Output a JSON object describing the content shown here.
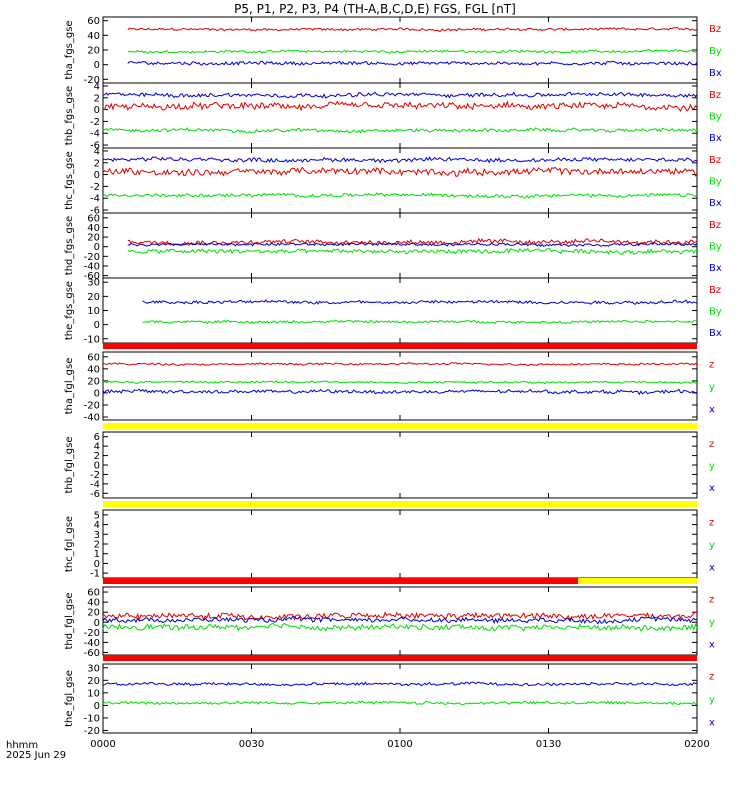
{
  "title": "P5, P1, P2, P3, P4 (TH-A,B,C,D,E) FGS, FGL [nT]",
  "footer": {
    "time_unit": "hhmm",
    "date": "2025 Jun 29"
  },
  "colors": {
    "z": "#dd0000",
    "y": "#00dd00",
    "x": "#0000cc",
    "bar_red": "#ff0000",
    "bar_yellow": "#ffff00",
    "frame": "#000000"
  },
  "chart_data": {
    "type": "line",
    "x_axis": {
      "ticks": [
        "0000",
        "0030",
        "0100",
        "0130",
        "0200"
      ],
      "xlim": [
        "0000",
        "0200"
      ]
    },
    "panels": [
      {
        "ylabel": "tha_fgs_gse",
        "yticks": [
          "60",
          "40",
          "20",
          "0",
          "-20"
        ],
        "ylim": [
          -25,
          65
        ],
        "legend": [
          "Bz",
          "By",
          "Bx"
        ],
        "series": [
          {
            "name": "Bz",
            "start": "0005",
            "level": 48,
            "noise": 3
          },
          {
            "name": "By",
            "start": "0005",
            "level": 18,
            "noise": 3
          },
          {
            "name": "Bx",
            "start": "0005",
            "level": 2,
            "noise": 4
          }
        ]
      },
      {
        "ylabel": "thb_fgs_gse",
        "yticks": [
          "4",
          "2",
          "0",
          "-2",
          "-4",
          "-6"
        ],
        "ylim": [
          -6.5,
          4.5
        ],
        "legend": [
          "Bz",
          "By",
          "Bx"
        ],
        "series": [
          {
            "name": "Bz",
            "start": "0000",
            "level": 0.5,
            "noise": 1
          },
          {
            "name": "By",
            "start": "0000",
            "level": -3.5,
            "noise": 0.5
          },
          {
            "name": "Bx",
            "start": "0000",
            "level": 2.5,
            "noise": 0.6
          }
        ]
      },
      {
        "ylabel": "thc_fgs_gse",
        "yticks": [
          "4",
          "2",
          "0",
          "-2",
          "-4",
          "-6"
        ],
        "ylim": [
          -6.5,
          4.5
        ],
        "legend": [
          "Bz",
          "By",
          "Bx"
        ],
        "series": [
          {
            "name": "Bz",
            "start": "0000",
            "level": 0.5,
            "noise": 1
          },
          {
            "name": "By",
            "start": "0000",
            "level": -3.5,
            "noise": 0.5
          },
          {
            "name": "Bx",
            "start": "0000",
            "level": 2.5,
            "noise": 0.6
          }
        ]
      },
      {
        "ylabel": "thd_fgs_gse",
        "yticks": [
          "60",
          "40",
          "20",
          "0",
          "-20",
          "-40",
          "-60"
        ],
        "ylim": [
          -65,
          70
        ],
        "legend": [
          "Bz",
          "By",
          "Bx"
        ],
        "series": [
          {
            "name": "Bz",
            "start": "0005",
            "level": 10,
            "noise": 8
          },
          {
            "name": "By",
            "start": "0005",
            "level": -10,
            "noise": 8
          },
          {
            "name": "Bx",
            "start": "0005",
            "level": 5,
            "noise": 5
          }
        ]
      },
      {
        "ylabel": "the_fgs_gse",
        "yticks": [
          "30",
          "20",
          "10",
          "0",
          "-10"
        ],
        "ylim": [
          -13,
          33
        ],
        "legend": [
          "Bz",
          "By",
          "Bx"
        ],
        "series": [
          {
            "name": "Bx",
            "start": "0008",
            "level": 16,
            "noise": 2
          },
          {
            "name": "By",
            "start": "0008",
            "level": 2,
            "noise": 1.5
          }
        ]
      },
      {
        "ylabel": "tha_fgl_gse",
        "yticks": [
          "60",
          "40",
          "20",
          "0",
          "-20",
          "-40"
        ],
        "ylim": [
          -45,
          68
        ],
        "legend": [
          "z",
          "y",
          "x"
        ],
        "top_bar": [
          "red"
        ],
        "series": [
          {
            "name": "z",
            "start": "0000",
            "level": 48,
            "noise": 3
          },
          {
            "name": "y",
            "start": "0000",
            "level": 18,
            "noise": 3
          },
          {
            "name": "x",
            "start": "0000",
            "level": 2,
            "noise": 5
          }
        ]
      },
      {
        "ylabel": "thb_fgl_gse",
        "yticks": [
          "6",
          "4",
          "2",
          "0",
          "-2",
          "-4",
          "-6"
        ],
        "ylim": [
          -7,
          7
        ],
        "legend": [
          "z",
          "y",
          "x"
        ],
        "top_bar": [
          "yellow"
        ],
        "series": []
      },
      {
        "ylabel": "thc_fgl_gse",
        "yticks": [
          "5",
          "4",
          "3",
          "2",
          "1",
          "0",
          "-1"
        ],
        "ylim": [
          -1.5,
          5.5
        ],
        "legend": [
          "z",
          "y",
          "x"
        ],
        "top_bar": [
          "yellow"
        ],
        "series": []
      },
      {
        "ylabel": "thd_fgl_gse",
        "yticks": [
          "60",
          "40",
          "20",
          "0",
          "-20",
          "-40",
          "-60"
        ],
        "ylim": [
          -65,
          70
        ],
        "legend": [
          "z",
          "y",
          "x"
        ],
        "top_bar": [
          "red",
          "yellow"
        ],
        "series": [
          {
            "name": "z",
            "start": "0000",
            "level": 12,
            "noise": 10
          },
          {
            "name": "y",
            "start": "0000",
            "level": -10,
            "noise": 10
          },
          {
            "name": "x",
            "start": "0000",
            "level": 5,
            "noise": 8
          }
        ]
      },
      {
        "ylabel": "the_fgl_gse",
        "yticks": [
          "30",
          "20",
          "10",
          "0",
          "-10",
          "-20"
        ],
        "ylim": [
          -22,
          33
        ],
        "legend": [
          "z",
          "y",
          "x"
        ],
        "top_bar": [
          "red"
        ],
        "series": [
          {
            "name": "x",
            "start": "0000",
            "level": 17,
            "noise": 2
          },
          {
            "name": "y",
            "start": "0000",
            "level": 2,
            "noise": 2
          }
        ]
      }
    ]
  }
}
